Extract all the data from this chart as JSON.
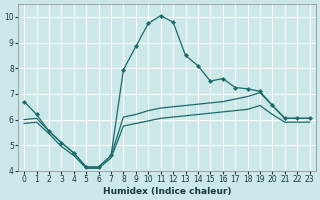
{
  "xlabel": "Humidex (Indice chaleur)",
  "ylabel": "",
  "xlim": [
    -0.5,
    23.5
  ],
  "ylim": [
    4,
    10.5
  ],
  "yticks": [
    4,
    5,
    6,
    7,
    8,
    9,
    10
  ],
  "xticks": [
    0,
    1,
    2,
    3,
    4,
    5,
    6,
    7,
    8,
    9,
    10,
    11,
    12,
    13,
    14,
    15,
    16,
    17,
    18,
    19,
    20,
    21,
    22,
    23
  ],
  "bg_color": "#cce8e8",
  "line_color": "#1a6b6b",
  "grid_color": "#ffffff",
  "spike_line": {
    "x": [
      0,
      1,
      2,
      3,
      4,
      5,
      6,
      7,
      8,
      9,
      10,
      11,
      12,
      13,
      14,
      15,
      16,
      17,
      18,
      19,
      20,
      21,
      22,
      23
    ],
    "y": [
      6.7,
      6.2,
      5.55,
      5.1,
      4.7,
      4.15,
      4.15,
      4.6,
      7.95,
      8.85,
      9.75,
      10.05,
      9.8,
      8.5,
      8.1,
      7.5,
      7.6,
      7.25,
      7.2,
      7.1,
      6.55,
      6.05,
      6.05,
      6.05
    ]
  },
  "upper_line": {
    "x": [
      0,
      1,
      2,
      3,
      4,
      5,
      6,
      7,
      8,
      9,
      10,
      11,
      12,
      13,
      14,
      15,
      16,
      17,
      18,
      19,
      20,
      21,
      22,
      23
    ],
    "y": [
      6.0,
      6.05,
      5.55,
      5.1,
      4.7,
      4.15,
      4.15,
      4.6,
      6.1,
      6.2,
      6.35,
      6.45,
      6.5,
      6.55,
      6.6,
      6.65,
      6.7,
      6.8,
      6.9,
      7.05,
      6.55,
      6.05,
      6.05,
      6.05
    ]
  },
  "lower_line": {
    "x": [
      0,
      1,
      2,
      3,
      4,
      5,
      6,
      7,
      8,
      9,
      10,
      11,
      12,
      13,
      14,
      15,
      16,
      17,
      18,
      19,
      20,
      21,
      22,
      23
    ],
    "y": [
      5.85,
      5.9,
      5.45,
      4.95,
      4.6,
      4.1,
      4.1,
      4.5,
      5.75,
      5.85,
      5.95,
      6.05,
      6.1,
      6.15,
      6.2,
      6.25,
      6.3,
      6.35,
      6.4,
      6.55,
      6.2,
      5.9,
      5.9,
      5.9
    ]
  }
}
